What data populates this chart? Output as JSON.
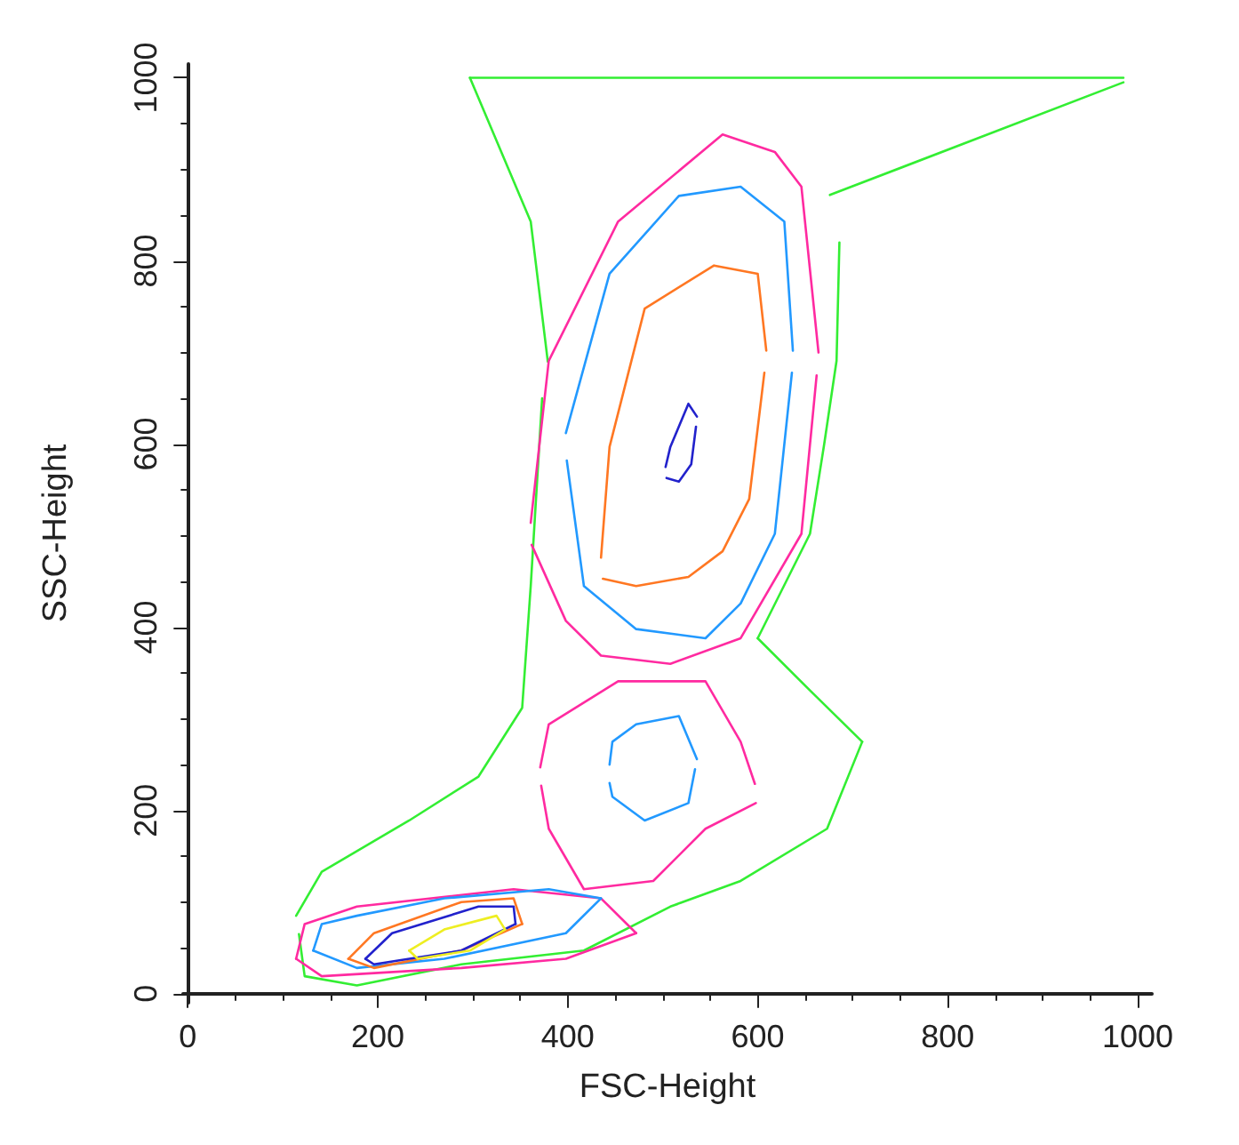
{
  "chart_data": {
    "type": "line",
    "xlabel": "FSC-Height",
    "ylabel": "SSC-Height",
    "xlim": [
      -5,
      1015
    ],
    "ylim": [
      -10,
      1015
    ],
    "xticks": [
      0,
      200,
      400,
      600,
      800,
      1000
    ],
    "yticks": [
      0,
      200,
      400,
      600,
      800,
      1000
    ],
    "grid": false,
    "marker": "none",
    "line_style": "solid",
    "series": [
      {
        "color": "#33ee33",
        "x": [
          117,
          123,
          178,
          288,
          417,
          508,
          582,
          673,
          710
        ],
        "values": [
          65,
          19,
          9,
          32,
          47,
          95,
          123,
          180,
          275
        ]
      },
      {
        "color": "#33ee33",
        "x": [
          114,
          141,
          233,
          306,
          352,
          361,
          373
        ],
        "values": [
          85,
          133,
          189,
          237,
          312,
          445,
          650
        ]
      },
      {
        "color": "#33ee33",
        "x": [
          297,
          361,
          379
        ],
        "values": [
          1000,
          843,
          690
        ]
      },
      {
        "color": "#33ee33",
        "x": [
          297,
          985
        ],
        "values": [
          1000,
          1000
        ]
      },
      {
        "color": "#33ee33",
        "x": [
          676,
          985
        ],
        "values": [
          872,
          995
        ]
      },
      {
        "color": "#33ee33",
        "x": [
          600,
          655,
          670,
          683,
          686
        ],
        "values": [
          388,
          502,
          600,
          691,
          820
        ]
      },
      {
        "color": "#33ee33",
        "x": [
          600,
          655,
          710
        ],
        "values": [
          388,
          331,
          275
        ]
      },
      {
        "color": "#ff2aa0",
        "x": [
          361,
          380,
          453,
          563,
          618,
          646,
          664
        ],
        "values": [
          514,
          691,
          843,
          938,
          919,
          881,
          700
        ]
      },
      {
        "color": "#ff2aa0",
        "x": [
          362,
          398,
          435,
          508,
          582,
          646,
          662
        ],
        "values": [
          490,
          407,
          369,
          360,
          388,
          502,
          675
        ]
      },
      {
        "color": "#ff2aa0",
        "x": [
          371,
          380,
          453,
          545,
          582,
          597
        ],
        "values": [
          247,
          294,
          341,
          341,
          275,
          229
        ]
      },
      {
        "color": "#ff2aa0",
        "x": [
          372,
          380,
          417,
          490,
          545,
          598
        ],
        "values": [
          227,
          180,
          114,
          123,
          180,
          208
        ]
      },
      {
        "color": "#ff2aa0",
        "x": [
          114,
          123,
          178,
          343,
          435,
          472
        ],
        "values": [
          38,
          76,
          95,
          114,
          104,
          66
        ]
      },
      {
        "color": "#ff2aa0",
        "x": [
          114,
          141,
          288,
          398,
          472
        ],
        "values": [
          38,
          19,
          28,
          38,
          66
        ]
      },
      {
        "color": "#2299ff",
        "x": [
          398,
          444,
          517,
          582,
          628,
          637
        ],
        "values": [
          612,
          786,
          871,
          881,
          843,
          702
        ]
      },
      {
        "color": "#2299ff",
        "x": [
          399,
          417,
          472,
          545,
          582,
          618,
          636
        ],
        "values": [
          582,
          445,
          398,
          388,
          426,
          502,
          678
        ]
      },
      {
        "color": "#2299ff",
        "x": [
          444,
          447,
          472,
          517,
          536
        ],
        "values": [
          250,
          275,
          294,
          303,
          256
        ]
      },
      {
        "color": "#2299ff",
        "x": [
          444,
          447,
          481,
          527,
          534
        ],
        "values": [
          230,
          215,
          189,
          208,
          245
        ]
      },
      {
        "color": "#2299ff",
        "x": [
          132,
          141,
          178,
          270,
          380,
          435
        ],
        "values": [
          47,
          76,
          85,
          104,
          114,
          104
        ]
      },
      {
        "color": "#2299ff",
        "x": [
          132,
          178,
          270,
          398,
          435
        ],
        "values": [
          47,
          28,
          38,
          66,
          104
        ]
      },
      {
        "color": "#ff7722",
        "x": [
          435,
          444,
          481,
          554,
          600,
          609
        ],
        "values": [
          476,
          597,
          748,
          795,
          786,
          702
        ]
      },
      {
        "color": "#ff7722",
        "x": [
          437,
          472,
          527,
          563,
          591,
          607
        ],
        "values": [
          453,
          445,
          455,
          483,
          540,
          678
        ]
      },
      {
        "color": "#ff7722",
        "x": [
          169,
          196,
          288,
          343,
          352
        ],
        "values": [
          38,
          66,
          100,
          104,
          76
        ]
      },
      {
        "color": "#ff7722",
        "x": [
          169,
          196,
          288,
          352
        ],
        "values": [
          38,
          28,
          47,
          76
        ]
      },
      {
        "color": "#2222cc",
        "x": [
          503,
          508,
          527,
          536
        ],
        "values": [
          575,
          597,
          644,
          630
        ]
      },
      {
        "color": "#2222cc",
        "x": [
          504,
          517,
          530,
          535
        ],
        "values": [
          563,
          559,
          578,
          619
        ]
      },
      {
        "color": "#2222cc",
        "x": [
          187,
          215,
          306,
          343,
          345
        ],
        "values": [
          38,
          66,
          95,
          95,
          76
        ]
      },
      {
        "color": "#2222cc",
        "x": [
          187,
          196,
          288,
          345
        ],
        "values": [
          38,
          32,
          47,
          76
        ]
      },
      {
        "color": "#eeee22",
        "x": [
          233,
          270,
          325,
          334
        ],
        "values": [
          47,
          70,
          85,
          70
        ]
      },
      {
        "color": "#eeee22",
        "x": [
          233,
          242,
          297,
          334
        ],
        "values": [
          47,
          38,
          47,
          70
        ]
      }
    ]
  }
}
